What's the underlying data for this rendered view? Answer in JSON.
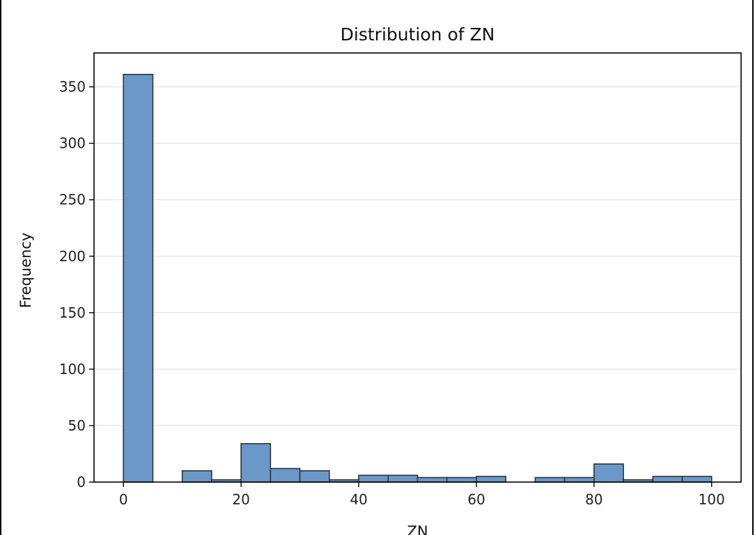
{
  "chart_data": {
    "type": "bar",
    "title": "Distribution of ZN",
    "xlabel": "ZN",
    "ylabel": "Frequency",
    "xlim": [
      -5,
      105
    ],
    "ylim": [
      0,
      380
    ],
    "x_ticks": [
      0,
      20,
      40,
      60,
      80,
      100
    ],
    "x_tick_labels": [
      "0",
      "20",
      "40",
      "60",
      "80",
      "100"
    ],
    "y_ticks": [
      0,
      50,
      100,
      150,
      200,
      250,
      300,
      350
    ],
    "y_tick_labels": [
      "0",
      "50",
      "100",
      "150",
      "200",
      "250",
      "300",
      "350"
    ],
    "grid": "horizontal",
    "bin_width": 5,
    "bins": [
      {
        "start": 0,
        "end": 5,
        "value": 361
      },
      {
        "start": 5,
        "end": 10,
        "value": 0
      },
      {
        "start": 10,
        "end": 15,
        "value": 10
      },
      {
        "start": 15,
        "end": 20,
        "value": 2
      },
      {
        "start": 20,
        "end": 25,
        "value": 34
      },
      {
        "start": 25,
        "end": 30,
        "value": 12
      },
      {
        "start": 30,
        "end": 35,
        "value": 10
      },
      {
        "start": 35,
        "end": 40,
        "value": 2
      },
      {
        "start": 40,
        "end": 45,
        "value": 6
      },
      {
        "start": 45,
        "end": 50,
        "value": 6
      },
      {
        "start": 50,
        "end": 55,
        "value": 4
      },
      {
        "start": 55,
        "end": 60,
        "value": 4
      },
      {
        "start": 60,
        "end": 65,
        "value": 5
      },
      {
        "start": 65,
        "end": 70,
        "value": 0
      },
      {
        "start": 70,
        "end": 75,
        "value": 4
      },
      {
        "start": 75,
        "end": 80,
        "value": 4
      },
      {
        "start": 80,
        "end": 85,
        "value": 16
      },
      {
        "start": 85,
        "end": 90,
        "value": 2
      },
      {
        "start": 90,
        "end": 95,
        "value": 5
      },
      {
        "start": 95,
        "end": 100,
        "value": 5
      }
    ],
    "colors": {
      "bar_fill": "#6a98c8",
      "bar_edge": "#333333",
      "grid": "#e6e6e6",
      "axes": "#000000"
    }
  }
}
